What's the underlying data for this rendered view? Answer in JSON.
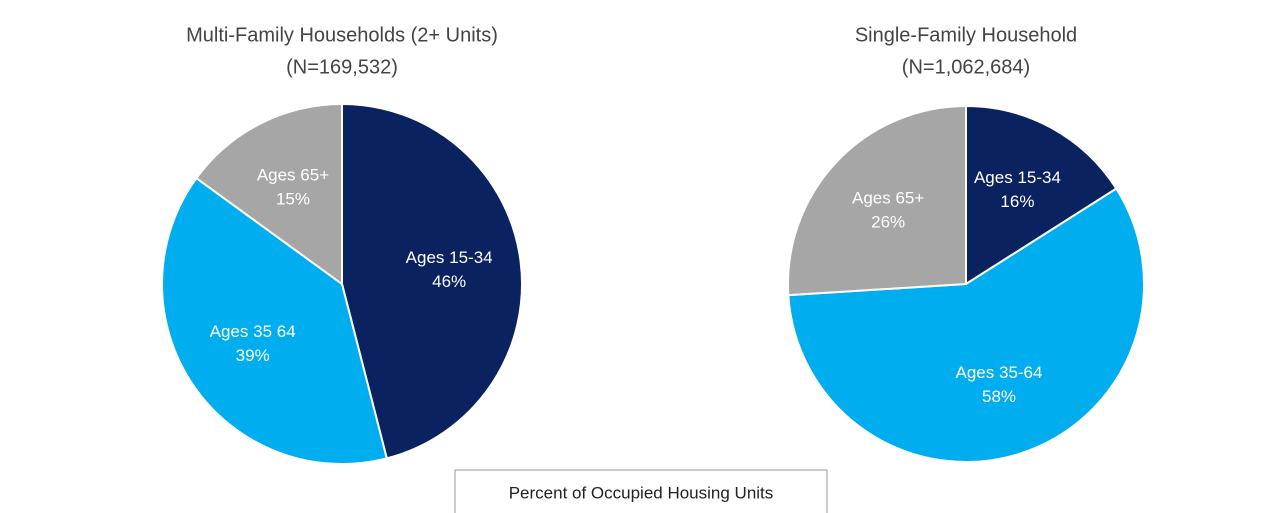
{
  "chart_data": [
    {
      "type": "pie",
      "title": "Multi-Family Households (2+ Units)",
      "subtitle": "(N=169,532)",
      "categories": [
        "Ages 15-34",
        "Ages 35 64",
        "Ages 65+"
      ],
      "values": [
        46,
        39,
        15
      ],
      "value_labels": [
        "46%",
        "39%",
        "15%"
      ],
      "colors": [
        "#0b2260",
        "#00aeef",
        "#a6a6a6"
      ]
    },
    {
      "type": "pie",
      "title": "Single-Family Household",
      "subtitle": "(N=1,062,684)",
      "categories": [
        "Ages 15-34",
        "Ages 35-64",
        "Ages 65+"
      ],
      "values": [
        16,
        58,
        26
      ],
      "value_labels": [
        "16%",
        "58%",
        "26%"
      ],
      "colors": [
        "#0b2260",
        "#00aeef",
        "#a6a6a6"
      ]
    }
  ],
  "footnote": "Percent of Occupied Housing Units"
}
